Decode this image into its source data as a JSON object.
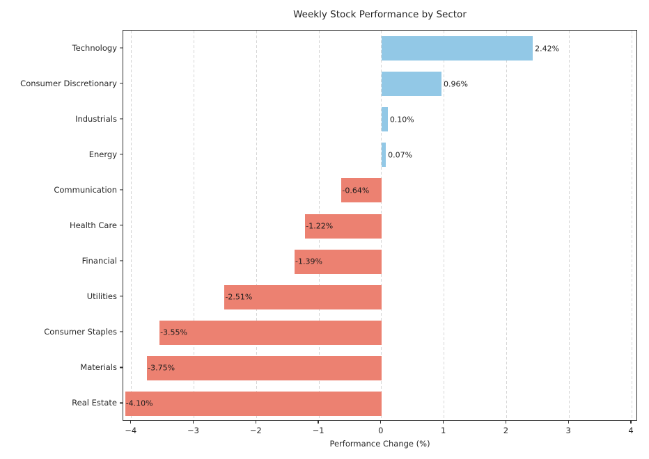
{
  "chart_data": {
    "type": "bar",
    "orientation": "horizontal",
    "title": "Weekly Stock Performance by Sector",
    "xlabel": "Performance Change (%)",
    "ylabel": "",
    "categories": [
      "Technology",
      "Consumer Discretionary",
      "Industrials",
      "Energy",
      "Communication",
      "Health Care",
      "Financial",
      "Utilities",
      "Consumer Staples",
      "Materials",
      "Real Estate"
    ],
    "values": [
      2.42,
      0.96,
      0.1,
      0.07,
      -0.64,
      -1.22,
      -1.39,
      -2.51,
      -3.55,
      -3.75,
      -4.1
    ],
    "value_labels": [
      "2.42%",
      "0.96%",
      "0.10%",
      "0.07%",
      "-0.64%",
      "-1.22%",
      "-1.39%",
      "-2.51%",
      "-3.55%",
      "-3.75%",
      "-4.10%"
    ],
    "xlim": [
      -4.13,
      4.1
    ],
    "xticks": [
      -4,
      -3,
      -2,
      -1,
      0,
      1,
      2,
      3,
      4
    ],
    "xtick_labels": [
      "−4",
      "−3",
      "−2",
      "−1",
      "0",
      "1",
      "2",
      "3",
      "4"
    ],
    "grid": true,
    "legend": null,
    "colors": {
      "positive_bar": "#92C8E6",
      "negative_bar": "#EC8171",
      "grid": "#d5d5d5",
      "spine": "#2e2e2e",
      "text": "#262626"
    }
  }
}
